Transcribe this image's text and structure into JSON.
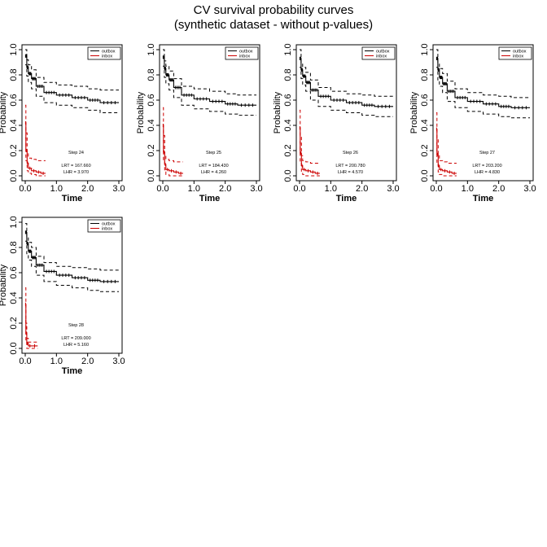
{
  "figure": {
    "title_line1": "CV survival probability curves",
    "title_line2": "(synthetic dataset - without p-values)"
  },
  "colors": {
    "outbox": "#000000",
    "inbox": "#cc0000"
  },
  "chart_data": [
    {
      "type": "line",
      "xlabel": "Time",
      "ylabel": "Probability",
      "xlim": [
        0,
        3
      ],
      "ylim": [
        0,
        1
      ],
      "xticks": [
        "0.0",
        "1.0",
        "2.0",
        "3.0"
      ],
      "yticks": [
        "0.0",
        "0.2",
        "0.4",
        "0.6",
        "0.8",
        "1.0"
      ],
      "legend": {
        "position": "top-right",
        "entries": [
          "outbox",
          "inbox"
        ]
      },
      "annotation": {
        "step": "Step 24",
        "lrt": "LRT = 167.660",
        "lhr": "LHR = 3.970"
      },
      "series": [
        {
          "name": "outbox",
          "x": [
            0,
            0.05,
            0.1,
            0.2,
            0.35,
            0.6,
            1.0,
            1.5,
            2.0,
            2.4,
            3.0
          ],
          "values": [
            0.95,
            0.86,
            0.81,
            0.77,
            0.71,
            0.66,
            0.64,
            0.62,
            0.6,
            0.58,
            0.58
          ],
          "lower": [
            0.88,
            0.79,
            0.74,
            0.69,
            0.63,
            0.58,
            0.56,
            0.54,
            0.52,
            0.5,
            0.5
          ],
          "upper": [
            1.0,
            0.92,
            0.88,
            0.84,
            0.78,
            0.74,
            0.72,
            0.71,
            0.69,
            0.68,
            0.68
          ]
        },
        {
          "name": "inbox",
          "x": [
            0,
            0.02,
            0.06,
            0.1,
            0.2,
            0.35,
            0.5,
            0.65
          ],
          "values": [
            0.42,
            0.2,
            0.1,
            0.06,
            0.04,
            0.03,
            0.02,
            0.02
          ],
          "lower": [
            0.3,
            0.12,
            0.04,
            0.02,
            0.01,
            0.0,
            0.0,
            0.0
          ],
          "upper": [
            0.56,
            0.34,
            0.18,
            0.14,
            0.13,
            0.12,
            0.12,
            0.12
          ]
        }
      ]
    },
    {
      "type": "line",
      "xlabel": "Time",
      "ylabel": "Probability",
      "xlim": [
        0,
        3
      ],
      "ylim": [
        0,
        1
      ],
      "xticks": [
        "0.0",
        "1.0",
        "2.0",
        "3.0"
      ],
      "yticks": [
        "0.0",
        "0.2",
        "0.4",
        "0.6",
        "0.8",
        "1.0"
      ],
      "legend": {
        "position": "top-right",
        "entries": [
          "outbox",
          "inbox"
        ]
      },
      "annotation": {
        "step": "Step 25",
        "lrt": "LRT = 184.430",
        "lhr": "LHR = 4.260"
      },
      "series": [
        {
          "name": "outbox",
          "x": [
            0,
            0.05,
            0.1,
            0.2,
            0.35,
            0.6,
            1.0,
            1.5,
            2.0,
            2.4,
            3.0
          ],
          "values": [
            0.94,
            0.85,
            0.8,
            0.76,
            0.7,
            0.64,
            0.61,
            0.59,
            0.57,
            0.56,
            0.56
          ],
          "lower": [
            0.87,
            0.78,
            0.73,
            0.68,
            0.62,
            0.56,
            0.53,
            0.51,
            0.49,
            0.48,
            0.48
          ],
          "upper": [
            1.0,
            0.91,
            0.87,
            0.83,
            0.77,
            0.71,
            0.69,
            0.67,
            0.65,
            0.64,
            0.64
          ]
        },
        {
          "name": "inbox",
          "x": [
            0,
            0.02,
            0.06,
            0.1,
            0.2,
            0.35,
            0.5,
            0.65
          ],
          "values": [
            0.4,
            0.19,
            0.09,
            0.05,
            0.04,
            0.03,
            0.02,
            0.02
          ],
          "lower": [
            0.28,
            0.11,
            0.03,
            0.01,
            0.0,
            0.0,
            0.0,
            0.0
          ],
          "upper": [
            0.54,
            0.32,
            0.17,
            0.13,
            0.12,
            0.11,
            0.11,
            0.11
          ]
        }
      ]
    },
    {
      "type": "line",
      "xlabel": "Time",
      "ylabel": "Probability",
      "xlim": [
        0,
        3
      ],
      "ylim": [
        0,
        1
      ],
      "xticks": [
        "0.0",
        "1.0",
        "2.0",
        "3.0"
      ],
      "yticks": [
        "0.0",
        "0.2",
        "0.4",
        "0.6",
        "0.8",
        "1.0"
      ],
      "legend": {
        "position": "top-right",
        "entries": [
          "outbox",
          "inbox"
        ]
      },
      "annotation": {
        "step": "Step 26",
        "lrt": "LRT = 200.780",
        "lhr": "LHR = 4.570"
      },
      "series": [
        {
          "name": "outbox",
          "x": [
            0,
            0.05,
            0.1,
            0.2,
            0.35,
            0.6,
            1.0,
            1.5,
            2.0,
            2.4,
            3.0
          ],
          "values": [
            0.93,
            0.84,
            0.79,
            0.74,
            0.68,
            0.63,
            0.6,
            0.58,
            0.56,
            0.55,
            0.55
          ],
          "lower": [
            0.86,
            0.77,
            0.72,
            0.67,
            0.6,
            0.55,
            0.52,
            0.5,
            0.48,
            0.47,
            0.47
          ],
          "upper": [
            1.0,
            0.9,
            0.86,
            0.82,
            0.76,
            0.7,
            0.67,
            0.65,
            0.64,
            0.63,
            0.63
          ]
        },
        {
          "name": "inbox",
          "x": [
            0,
            0.02,
            0.06,
            0.1,
            0.2,
            0.35,
            0.5,
            0.65
          ],
          "values": [
            0.38,
            0.18,
            0.08,
            0.05,
            0.04,
            0.03,
            0.02,
            0.02
          ],
          "lower": [
            0.27,
            0.1,
            0.03,
            0.01,
            0.0,
            0.0,
            0.0,
            0.0
          ],
          "upper": [
            0.52,
            0.31,
            0.16,
            0.12,
            0.11,
            0.1,
            0.1,
            0.1
          ]
        }
      ]
    },
    {
      "type": "line",
      "xlabel": "Time",
      "ylabel": "Probability",
      "xlim": [
        0,
        3
      ],
      "ylim": [
        0,
        1
      ],
      "xticks": [
        "0.0",
        "1.0",
        "2.0",
        "3.0"
      ],
      "yticks": [
        "0.0",
        "0.2",
        "0.4",
        "0.6",
        "0.8",
        "1.0"
      ],
      "legend": {
        "position": "top-right",
        "entries": [
          "outbox",
          "inbox"
        ]
      },
      "annotation": {
        "step": "Step 27",
        "lrt": "LRT = 203.200",
        "lhr": "LHR = 4.830"
      },
      "series": [
        {
          "name": "outbox",
          "x": [
            0,
            0.05,
            0.1,
            0.2,
            0.35,
            0.6,
            1.0,
            1.5,
            2.0,
            2.4,
            3.0
          ],
          "values": [
            0.93,
            0.84,
            0.78,
            0.73,
            0.67,
            0.62,
            0.59,
            0.57,
            0.55,
            0.54,
            0.54
          ],
          "lower": [
            0.86,
            0.76,
            0.71,
            0.66,
            0.59,
            0.54,
            0.51,
            0.49,
            0.47,
            0.46,
            0.46
          ],
          "upper": [
            1.0,
            0.9,
            0.85,
            0.81,
            0.75,
            0.69,
            0.66,
            0.64,
            0.63,
            0.62,
            0.62
          ]
        },
        {
          "name": "inbox",
          "x": [
            0,
            0.02,
            0.06,
            0.1,
            0.2,
            0.35,
            0.5,
            0.65
          ],
          "values": [
            0.37,
            0.17,
            0.08,
            0.05,
            0.04,
            0.03,
            0.02,
            0.02
          ],
          "lower": [
            0.26,
            0.1,
            0.03,
            0.01,
            0.0,
            0.0,
            0.0,
            0.0
          ],
          "upper": [
            0.5,
            0.3,
            0.16,
            0.12,
            0.11,
            0.1,
            0.1,
            0.1
          ]
        }
      ]
    },
    {
      "type": "line",
      "xlabel": "Time",
      "ylabel": "Probability",
      "xlim": [
        0,
        3
      ],
      "ylim": [
        0,
        1
      ],
      "xticks": [
        "0.0",
        "1.0",
        "2.0",
        "3.0"
      ],
      "yticks": [
        "0.0",
        "0.2",
        "0.4",
        "0.6",
        "0.8",
        "1.0"
      ],
      "legend": {
        "position": "top-right",
        "entries": [
          "outbox",
          "inbox"
        ]
      },
      "annotation": {
        "step": "Step 28",
        "lrt": "LRT = 209.000",
        "lhr": "LHR = 5.160"
      },
      "series": [
        {
          "name": "outbox",
          "x": [
            0,
            0.05,
            0.1,
            0.2,
            0.35,
            0.6,
            1.0,
            1.5,
            2.0,
            2.4,
            3.0
          ],
          "values": [
            0.92,
            0.83,
            0.77,
            0.72,
            0.66,
            0.61,
            0.58,
            0.56,
            0.54,
            0.53,
            0.53
          ],
          "lower": [
            0.85,
            0.75,
            0.7,
            0.65,
            0.58,
            0.53,
            0.5,
            0.48,
            0.46,
            0.45,
            0.45
          ],
          "upper": [
            0.99,
            0.89,
            0.84,
            0.8,
            0.73,
            0.68,
            0.65,
            0.64,
            0.63,
            0.62,
            0.62
          ]
        },
        {
          "name": "inbox",
          "x": [
            0,
            0.02,
            0.05,
            0.1,
            0.2,
            0.4
          ],
          "values": [
            0.35,
            0.12,
            0.04,
            0.02,
            0.02,
            0.02
          ],
          "lower": [
            0.22,
            0.05,
            0.0,
            0.0,
            0.0,
            0.0
          ],
          "upper": [
            0.48,
            0.2,
            0.08,
            0.05,
            0.05,
            0.05
          ]
        }
      ]
    }
  ]
}
